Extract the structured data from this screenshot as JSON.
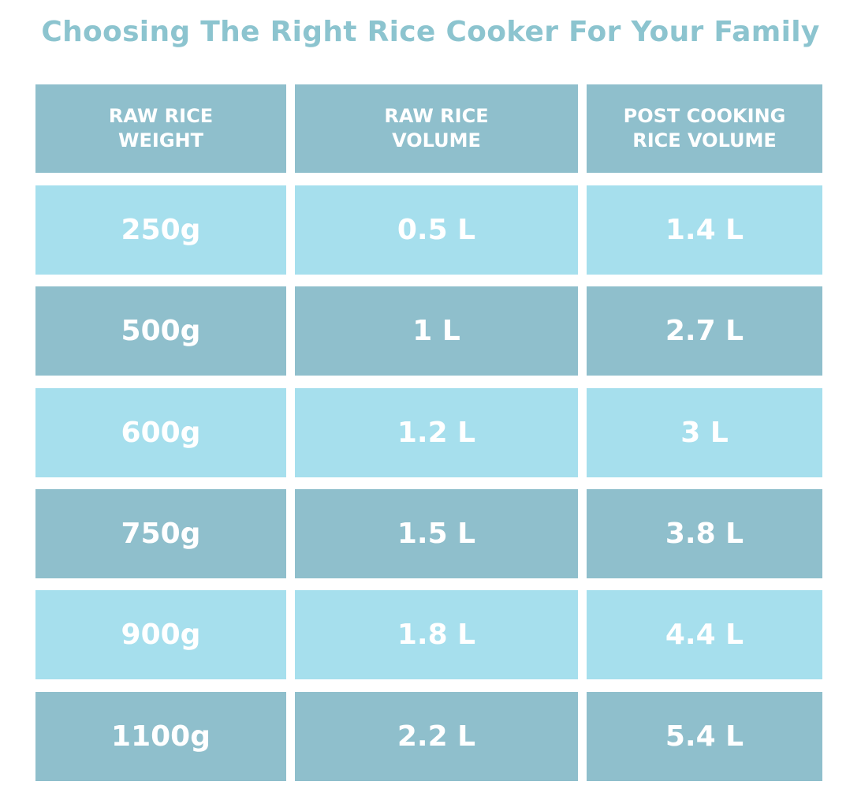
{
  "header": {
    "title": "Choosing The Right Rice Cooker For Your Family"
  },
  "table": {
    "columns": [
      "RAW RICE WEIGHT",
      "RAW RICE VOLUME",
      "POST COOKING RICE VOLUME"
    ],
    "rows": [
      [
        "250g",
        "0.5 L",
        "1.4 L"
      ],
      [
        "500g",
        "1 L",
        "2.7 L"
      ],
      [
        "600g",
        "1.2 L",
        "3 L"
      ],
      [
        "750g",
        "1.5 L",
        "3.8 L"
      ],
      [
        "900g",
        "1.8 L",
        "4.4 L"
      ],
      [
        "1100g",
        "2.2 L",
        "5.4 L"
      ]
    ]
  }
}
